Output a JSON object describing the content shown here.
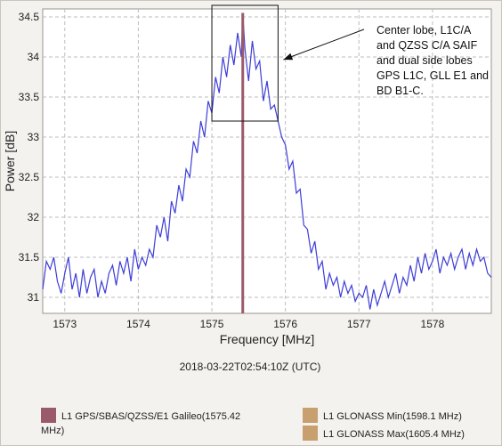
{
  "chart_data": {
    "type": "line",
    "xlabel": "Frequency [MHz]",
    "ylabel": "Power [dB]",
    "xlim": [
      1572.7,
      1578.8
    ],
    "ylim": [
      30.8,
      34.6
    ],
    "x_ticks": [
      1573,
      1574,
      1575,
      1576,
      1577,
      1578
    ],
    "y_ticks": [
      31,
      31.5,
      32,
      32.5,
      33,
      33.5,
      34,
      34.5
    ],
    "grid": true,
    "series_color": "#3d3dd8",
    "series": [
      {
        "x": [
          1572.7,
          1572.75,
          1572.8,
          1572.85,
          1572.9,
          1572.95,
          1573.0,
          1573.05,
          1573.1,
          1573.15,
          1573.2,
          1573.25,
          1573.3,
          1573.35,
          1573.4,
          1573.45,
          1573.5,
          1573.55,
          1573.6,
          1573.65,
          1573.7,
          1573.75,
          1573.8,
          1573.85,
          1573.9,
          1573.95,
          1574.0,
          1574.05,
          1574.1,
          1574.15,
          1574.2,
          1574.25,
          1574.3,
          1574.35,
          1574.4,
          1574.45,
          1574.5,
          1574.55,
          1574.6,
          1574.65,
          1574.7,
          1574.75,
          1574.8,
          1574.85,
          1574.9,
          1574.95,
          1575.0,
          1575.05,
          1575.1,
          1575.15,
          1575.2,
          1575.25,
          1575.3,
          1575.35,
          1575.4,
          1575.42,
          1575.45,
          1575.5,
          1575.55,
          1575.6,
          1575.65,
          1575.7,
          1575.75,
          1575.8,
          1575.85,
          1575.9,
          1575.95,
          1576.0,
          1576.05,
          1576.1,
          1576.15,
          1576.2,
          1576.25,
          1576.3,
          1576.35,
          1576.4,
          1576.45,
          1576.5,
          1576.55,
          1576.6,
          1576.65,
          1576.7,
          1576.75,
          1576.8,
          1576.85,
          1576.9,
          1576.95,
          1577.0,
          1577.05,
          1577.1,
          1577.15,
          1577.2,
          1577.25,
          1577.3,
          1577.35,
          1577.4,
          1577.45,
          1577.5,
          1577.55,
          1577.6,
          1577.65,
          1577.7,
          1577.75,
          1577.8,
          1577.85,
          1577.9,
          1577.95,
          1578.0,
          1578.05,
          1578.1,
          1578.15,
          1578.2,
          1578.25,
          1578.3,
          1578.35,
          1578.4,
          1578.45,
          1578.5,
          1578.55,
          1578.6,
          1578.65,
          1578.7,
          1578.75,
          1578.8
        ],
        "values": [
          31.1,
          31.45,
          31.35,
          31.5,
          31.2,
          31.05,
          31.3,
          31.5,
          31.1,
          31.3,
          31.0,
          31.35,
          31.05,
          31.25,
          31.35,
          31.0,
          31.2,
          31.05,
          31.3,
          31.4,
          31.15,
          31.45,
          31.3,
          31.5,
          31.2,
          31.6,
          31.35,
          31.5,
          31.4,
          31.6,
          31.5,
          31.9,
          31.75,
          32.0,
          31.7,
          32.2,
          32.05,
          32.4,
          32.2,
          32.6,
          32.5,
          32.95,
          32.8,
          33.2,
          33.0,
          33.45,
          33.3,
          33.75,
          33.55,
          34.0,
          33.75,
          34.15,
          33.9,
          34.3,
          34.0,
          34.55,
          34.1,
          33.7,
          34.2,
          33.85,
          33.95,
          33.45,
          33.7,
          33.35,
          33.4,
          33.2,
          33.0,
          32.9,
          32.6,
          32.7,
          32.3,
          32.35,
          31.9,
          31.85,
          31.55,
          31.7,
          31.35,
          31.45,
          31.1,
          31.3,
          31.15,
          31.25,
          31.0,
          31.2,
          31.05,
          31.15,
          30.95,
          31.05,
          31.0,
          31.15,
          30.85,
          31.1,
          30.9,
          31.05,
          31.2,
          31.0,
          31.15,
          31.3,
          31.05,
          31.25,
          31.15,
          31.4,
          31.2,
          31.5,
          31.3,
          31.55,
          31.35,
          31.45,
          31.6,
          31.3,
          31.5,
          31.4,
          31.55,
          31.35,
          31.5,
          31.6,
          31.35,
          31.55,
          31.4,
          31.6,
          31.45,
          31.5,
          31.3,
          31.25
        ]
      }
    ],
    "marker_line": {
      "x": 1575.42,
      "color": "#9a5a6a"
    },
    "annotation": {
      "lines": [
        "Center lobe, L1C/A",
        "and QZSS C/A SAIF",
        "and dual side lobes",
        "GPS L1C, GLL E1 and",
        "BD B1-C."
      ],
      "box": {
        "x0": 1575.0,
        "x1": 1575.9,
        "y0": 33.2,
        "y1": 34.6
      }
    }
  },
  "timestamp": "2018-03-22T02:54:10Z (UTC)",
  "legend": {
    "items": [
      {
        "label_line1": "L1 GPS/SBAS/QZSS/E1 Galileo(1575.42",
        "label_line2": "MHz)",
        "color": "#9a5a6a"
      },
      {
        "label": "L1 GLONASS Min(1598.1 MHz)",
        "color": "#c8a070"
      },
      {
        "label": "L1 GLONASS Max(1605.4 MHz)",
        "color": "#c8a070"
      }
    ]
  }
}
